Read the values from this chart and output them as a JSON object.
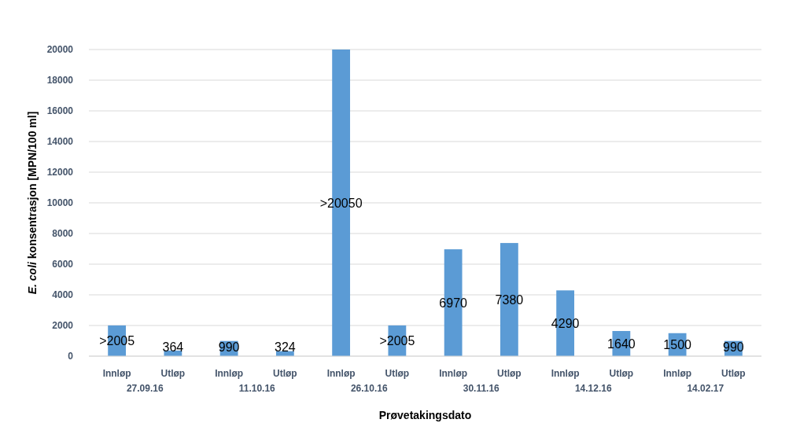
{
  "chart_data": {
    "type": "bar",
    "xlabel": "Prøvetakingsdato",
    "ylabel": "E. coli konsentrasjon [MPN/100 ml]",
    "categories": [
      "Innløp",
      "Utløp",
      "Innløp",
      "Utløp",
      "Innløp",
      "Utløp",
      "Innløp",
      "Utløp",
      "Innløp",
      "Utløp",
      "Innløp",
      "Utløp"
    ],
    "annotations": [
      "27.09.16",
      "11.10.16",
      "26.10.16",
      "30.11.16",
      "14.12.16",
      "14.02.17"
    ],
    "values": [
      2005,
      364,
      990,
      324,
      20000,
      2005,
      6970,
      7380,
      4290,
      1640,
      1500,
      990
    ],
    "value_labels": [
      ">2005",
      "364",
      "990",
      "324",
      ">20050",
      ">2005",
      "6970",
      "7380",
      "4290",
      "1640",
      "1500",
      "990"
    ],
    "color": "#5b9bd5",
    "ylim": [
      0,
      20000
    ],
    "yticks": [
      0,
      2000,
      4000,
      6000,
      8000,
      10000,
      12000,
      14000,
      16000,
      18000,
      20000
    ],
    "grid": "y"
  }
}
